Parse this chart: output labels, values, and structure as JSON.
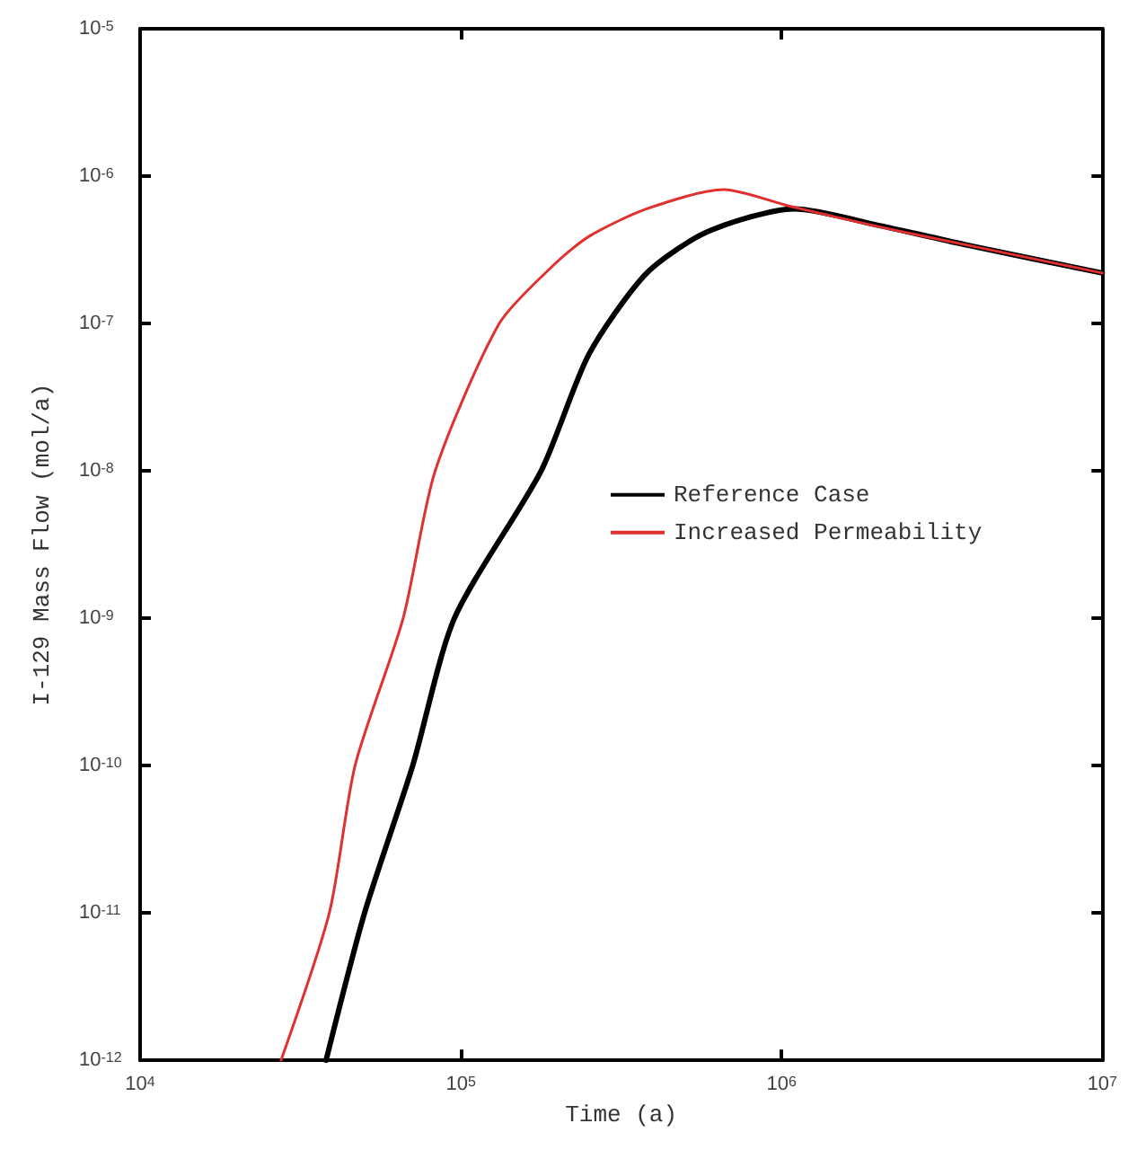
{
  "chart_data": {
    "type": "line",
    "xlabel": "Time (a)",
    "ylabel": "I-129 Mass Flow (mol/a)",
    "log": "xy",
    "grid": false,
    "legend": "center right",
    "marker": "none",
    "line_style": "solid",
    "xlim": [
      10000,
      10000000
    ],
    "xticks": [
      {
        "value": 10000,
        "label": "10$^{4}$"
      },
      {
        "value": 100000,
        "label": "10$^{5}$"
      },
      {
        "value": 1000000,
        "label": "10$^{6}$"
      },
      {
        "value": 10000000,
        "label": "10$^{7}$"
      }
    ],
    "ylim": [
      1e-12,
      1e-05
    ],
    "yticks": [
      {
        "value": 1e-12,
        "label": "10$^{-12}$"
      },
      {
        "value": 1e-11,
        "label": "10$^{-11}$"
      },
      {
        "value": 1e-10,
        "label": "10$^{-10}$"
      },
      {
        "value": 1e-09,
        "label": "10$^{-9}$"
      },
      {
        "value": 1e-08,
        "label": "10$^{-8}$"
      },
      {
        "value": 1e-07,
        "label": "10$^{-7}$"
      },
      {
        "value": 1e-06,
        "label": "10$^{-6}$"
      },
      {
        "value": 1e-05,
        "label": "10$^{-5}$"
      }
    ],
    "series": [
      {
        "name": "Reference Case",
        "color": "#000000",
        "x": [
          38000,
          50100,
          70800,
          95500,
          178000,
          251000,
          380000,
          589000,
          1096000,
          2040000,
          3800000,
          10000000
        ],
        "values": [
          1e-12,
          1e-11,
          1e-10,
          1e-09,
          1e-08,
          6.2e-08,
          2.2e-07,
          4.2e-07,
          6e-07,
          4.6e-07,
          3.4e-07,
          2.2e-07
        ]
      },
      {
        "name": "Increased Permeability",
        "color": "#e03030",
        "x": [
          27500,
          38900,
          46800,
          66100,
          83200,
          131800,
          195000,
          251000,
          380000,
          661000,
          1047000,
          2040000,
          3800000,
          10000000
        ],
        "values": [
          1e-12,
          1e-11,
          1e-10,
          1e-09,
          1e-08,
          1e-07,
          2.5e-07,
          3.9e-07,
          6e-07,
          8.1e-07,
          6.3e-07,
          4.5e-07,
          3.4e-07,
          2.2e-07
        ]
      }
    ]
  }
}
